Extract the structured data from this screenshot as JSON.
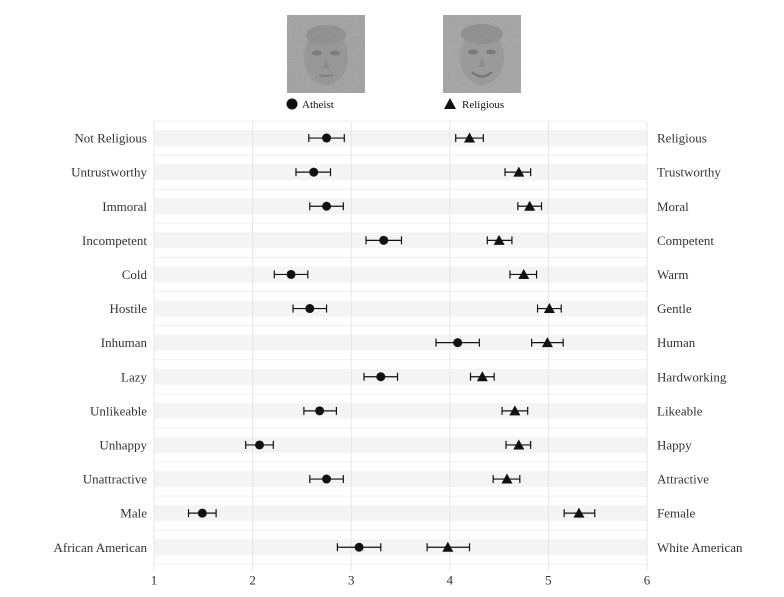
{
  "chart_data": {
    "type": "scatter",
    "legend": [
      {
        "name": "Atheist",
        "marker": "circle"
      },
      {
        "name": "Religious",
        "marker": "triangle"
      }
    ],
    "legend_placement": "top",
    "xlim": [
      1,
      6
    ],
    "xticks": [
      "1",
      "2",
      "3",
      "4",
      "5",
      "6"
    ],
    "grid": true,
    "rows": [
      {
        "left": "Not Religious",
        "right": "Religious",
        "atheist": {
          "mean": 2.75,
          "lo": 2.57,
          "hi": 2.93
        },
        "religious": {
          "mean": 4.2,
          "lo": 4.06,
          "hi": 4.34
        }
      },
      {
        "left": "Untrustworthy",
        "right": "Trustworthy",
        "atheist": {
          "mean": 2.62,
          "lo": 2.44,
          "hi": 2.79
        },
        "religious": {
          "mean": 4.7,
          "lo": 4.56,
          "hi": 4.82
        }
      },
      {
        "left": "Immoral",
        "right": "Moral",
        "atheist": {
          "mean": 2.75,
          "lo": 2.58,
          "hi": 2.92
        },
        "religious": {
          "mean": 4.81,
          "lo": 4.69,
          "hi": 4.93
        }
      },
      {
        "left": "Incompetent",
        "right": "Competent",
        "atheist": {
          "mean": 3.33,
          "lo": 3.15,
          "hi": 3.51
        },
        "religious": {
          "mean": 4.5,
          "lo": 4.38,
          "hi": 4.63
        }
      },
      {
        "left": "Cold",
        "right": "Warm",
        "atheist": {
          "mean": 2.39,
          "lo": 2.22,
          "hi": 2.56
        },
        "religious": {
          "mean": 4.75,
          "lo": 4.61,
          "hi": 4.88
        }
      },
      {
        "left": "Hostile",
        "right": "Gentle",
        "atheist": {
          "mean": 2.58,
          "lo": 2.41,
          "hi": 2.75
        },
        "religious": {
          "mean": 5.01,
          "lo": 4.89,
          "hi": 5.13
        }
      },
      {
        "left": "Inhuman",
        "right": "Human",
        "atheist": {
          "mean": 4.08,
          "lo": 3.86,
          "hi": 4.3
        },
        "religious": {
          "mean": 4.99,
          "lo": 4.83,
          "hi": 5.15
        }
      },
      {
        "left": "Lazy",
        "right": "Hardworking",
        "atheist": {
          "mean": 3.3,
          "lo": 3.13,
          "hi": 3.47
        },
        "religious": {
          "mean": 4.33,
          "lo": 4.21,
          "hi": 4.45
        }
      },
      {
        "left": "Unlikeable",
        "right": "Likeable",
        "atheist": {
          "mean": 2.68,
          "lo": 2.52,
          "hi": 2.85
        },
        "religious": {
          "mean": 4.66,
          "lo": 4.53,
          "hi": 4.79
        }
      },
      {
        "left": "Unhappy",
        "right": "Happy",
        "atheist": {
          "mean": 2.07,
          "lo": 1.93,
          "hi": 2.21
        },
        "religious": {
          "mean": 4.7,
          "lo": 4.57,
          "hi": 4.82
        }
      },
      {
        "left": "Unattractive",
        "right": "Attractive",
        "atheist": {
          "mean": 2.75,
          "lo": 2.58,
          "hi": 2.92
        },
        "religious": {
          "mean": 4.58,
          "lo": 4.44,
          "hi": 4.71
        }
      },
      {
        "left": "Male",
        "right": "Female",
        "atheist": {
          "mean": 1.49,
          "lo": 1.35,
          "hi": 1.63
        },
        "religious": {
          "mean": 5.31,
          "lo": 5.16,
          "hi": 5.47
        }
      },
      {
        "left": "African American",
        "right": "White American",
        "atheist": {
          "mean": 3.08,
          "lo": 2.86,
          "hi": 3.3
        },
        "religious": {
          "mean": 3.98,
          "lo": 3.77,
          "hi": 4.2
        }
      }
    ]
  },
  "colors": {
    "marker": "#111111",
    "grid": "#e6e6e6",
    "row_bg": "#f4f4f4",
    "face_bg": "#9a9a9a"
  },
  "images": [
    {
      "name": "atheist-face-image",
      "depicts": "noisy grayscale face"
    },
    {
      "name": "religious-face-image",
      "depicts": "noisy grayscale smiling face"
    }
  ]
}
